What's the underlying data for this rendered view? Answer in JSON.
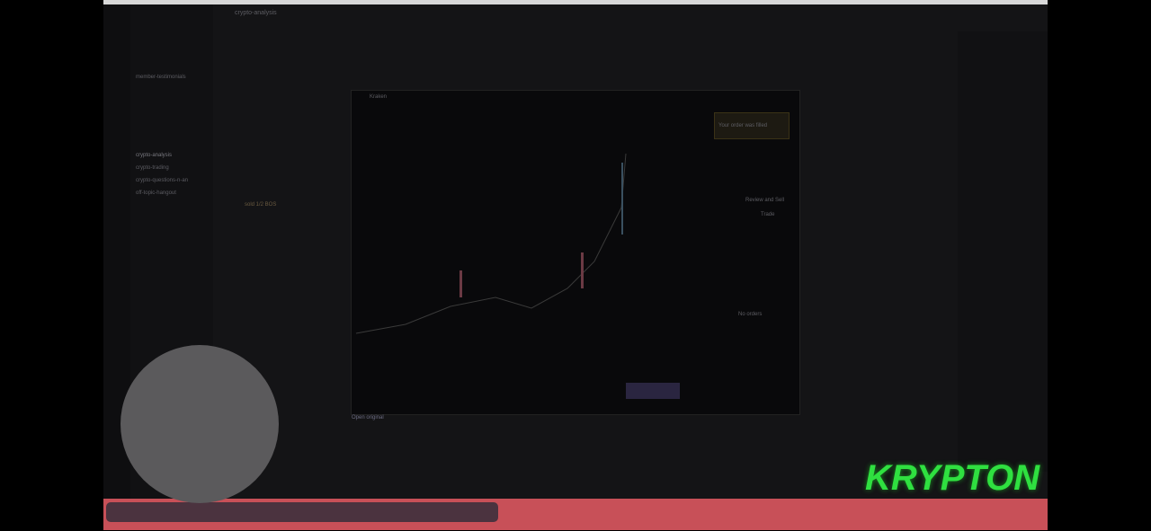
{
  "app": {
    "channel_title": "crypto-analysis"
  },
  "sidebar": {
    "channels": [
      "member-testimonials",
      "crypto-analysis",
      "crypto-trading",
      "crypto-questions-n-an",
      "off-topic-hangout"
    ]
  },
  "messages": [
    "sold 1/2 BOS"
  ],
  "trade_window": {
    "title": "Kraken",
    "notice": "Your order was filled",
    "button": "Review and Sell",
    "tab": "Trade",
    "empty": "No orders",
    "link": "Open original"
  },
  "overlay": {
    "brand": "KRYPTON"
  }
}
